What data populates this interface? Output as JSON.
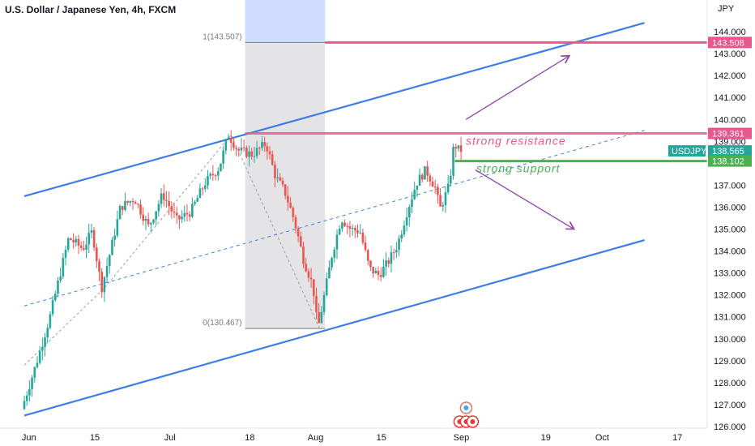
{
  "header": {
    "title": "U.S. Dollar / Japanese Yen, 4h, FXCM"
  },
  "colors": {
    "background": "#ffffff",
    "candle_up": "#26a69a",
    "candle_down": "#ef5350",
    "channel": "#3d7ee6",
    "resistance": "#e8588e",
    "support": "#4caf50",
    "arrow": "#8e44ad",
    "fib_region": "#e4e4e6",
    "fib_top_fill": "#cddcff",
    "axis_text": "#131722"
  },
  "chart_data": {
    "type": "candlestick",
    "title": "U.S. Dollar / Japanese Yen, 4h, FXCM",
    "currency_label": "JPY",
    "symbol": "USDJPY",
    "ylim": [
      126.0,
      145.0
    ],
    "y_ticks": [
      "126.000",
      "127.000",
      "128.000",
      "129.000",
      "130.000",
      "131.000",
      "132.000",
      "133.000",
      "134.000",
      "135.000",
      "136.000",
      "137.000",
      "138.000",
      "139.000",
      "140.000",
      "141.000",
      "142.000",
      "143.000",
      "144.000"
    ],
    "x_ticks": [
      {
        "label": "Jun",
        "day": 1
      },
      {
        "label": "15",
        "day": 15
      },
      {
        "label": "Jul",
        "day": 31
      },
      {
        "label": "18",
        "day": 48
      },
      {
        "label": "Aug",
        "day": 62
      },
      {
        "label": "15",
        "day": 76
      },
      {
        "label": "Sep",
        "day": 93
      },
      {
        "label": "19",
        "day": 111
      },
      {
        "label": "Oct",
        "day": 123
      },
      {
        "label": "17",
        "day": 139
      }
    ],
    "price_path": [
      [
        0,
        126.8
      ],
      [
        3,
        128.8
      ],
      [
        6,
        131.0
      ],
      [
        10,
        134.6
      ],
      [
        13,
        134.1
      ],
      [
        15,
        134.9
      ],
      [
        17,
        132.3
      ],
      [
        19,
        134.1
      ],
      [
        21,
        136.0
      ],
      [
        24,
        136.4
      ],
      [
        27,
        135.1
      ],
      [
        30,
        136.6
      ],
      [
        33,
        135.4
      ],
      [
        36,
        135.8
      ],
      [
        39,
        137.1
      ],
      [
        42,
        137.8
      ],
      [
        44,
        139.3
      ],
      [
        46,
        138.6
      ],
      [
        49,
        138.4
      ],
      [
        52,
        138.9
      ],
      [
        54,
        137.4
      ],
      [
        56,
        136.7
      ],
      [
        58,
        135.4
      ],
      [
        60,
        133.6
      ],
      [
        62,
        132.4
      ],
      [
        63,
        130.4
      ],
      [
        66,
        133.8
      ],
      [
        68,
        135.5
      ],
      [
        70,
        135.0
      ],
      [
        72,
        134.9
      ],
      [
        74,
        133.2
      ],
      [
        76,
        132.9
      ],
      [
        78,
        133.5
      ],
      [
        80,
        134.3
      ],
      [
        82,
        135.8
      ],
      [
        84,
        137.1
      ],
      [
        86,
        137.7
      ],
      [
        88,
        136.9
      ],
      [
        89,
        135.9
      ],
      [
        91,
        137.0
      ],
      [
        92,
        138.9
      ],
      [
        93,
        138.6
      ]
    ],
    "annotations": {
      "fib_top_label": "1(143.507)",
      "fib_bottom_label": "0(130.467)",
      "fib_high": 143.507,
      "fib_low": 130.467,
      "fib_start_day": 47,
      "fib_end_day": 64,
      "resistance_price": 139.361,
      "resistance_label": "139.361",
      "resistance_text": "strong resistance",
      "support_price": 138.102,
      "support_label": "138.102",
      "support_text": "strong support",
      "target_price": 143.508,
      "target_label": "143.508",
      "current_price": 138.565,
      "current_label": "138.565"
    },
    "channel_upper": [
      [
        0,
        136.5
      ],
      [
        132,
        144.4
      ]
    ],
    "channel_lower": [
      [
        0,
        126.5
      ],
      [
        132,
        134.5
      ]
    ],
    "channel_mid": [
      [
        0,
        131.5
      ],
      [
        132,
        139.5
      ]
    ],
    "arrows": [
      {
        "from": [
          94,
          140.0
        ],
        "to": [
          116,
          142.9
        ]
      },
      {
        "from": [
          96,
          137.7
        ],
        "to": [
          117,
          135.0
        ]
      }
    ]
  }
}
